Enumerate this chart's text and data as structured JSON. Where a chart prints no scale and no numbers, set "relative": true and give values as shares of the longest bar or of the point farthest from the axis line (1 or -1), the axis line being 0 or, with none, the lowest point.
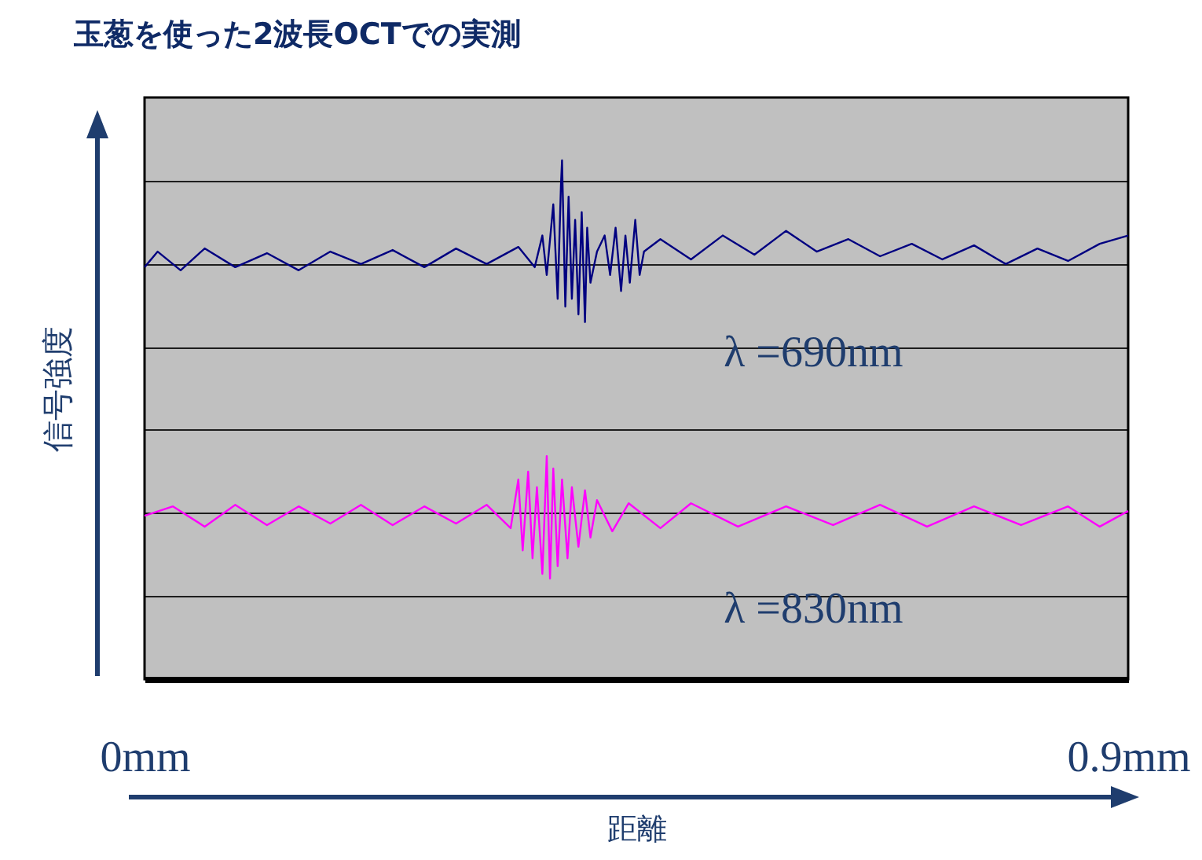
{
  "chart_data": {
    "type": "line",
    "title": "玉葱を使った2波長OCTでの実測",
    "xlabel": "距離",
    "ylabel": "信号強度",
    "relative": true,
    "grid": "y",
    "legend": false,
    "marker": "none",
    "line_style": "solid",
    "xlim": [
      0,
      0.9
    ],
    "xticks": [
      {
        "value": 0,
        "label": "0mm"
      },
      {
        "value": 0.9,
        "label": "0.9mm"
      }
    ],
    "series": [
      {
        "name": "λ =690nm",
        "color": "#000080",
        "x": [
          0,
          0.012,
          0.033,
          0.055,
          0.083,
          0.112,
          0.141,
          0.17,
          0.198,
          0.227,
          0.256,
          0.285,
          0.313,
          0.342,
          0.357,
          0.364,
          0.368,
          0.374,
          0.378,
          0.381,
          0.382,
          0.385,
          0.388,
          0.391,
          0.394,
          0.397,
          0.4,
          0.403,
          0.405,
          0.408,
          0.414,
          0.421,
          0.426,
          0.431,
          0.436,
          0.44,
          0.444,
          0.449,
          0.453,
          0.457,
          0.472,
          0.5,
          0.529,
          0.558,
          0.587,
          0.615,
          0.644,
          0.673,
          0.702,
          0.73,
          0.759,
          0.788,
          0.817,
          0.845,
          0.874,
          0.9
        ],
        "values": [
          0.794,
          0.824,
          0.788,
          0.83,
          0.794,
          0.821,
          0.788,
          0.824,
          0.8,
          0.827,
          0.794,
          0.83,
          0.8,
          0.833,
          0.794,
          0.855,
          0.779,
          0.915,
          0.733,
          0.952,
          1.0,
          0.718,
          0.93,
          0.733,
          0.885,
          0.703,
          0.9,
          0.688,
          0.87,
          0.764,
          0.824,
          0.855,
          0.779,
          0.87,
          0.748,
          0.855,
          0.764,
          0.885,
          0.779,
          0.824,
          0.848,
          0.809,
          0.855,
          0.818,
          0.864,
          0.824,
          0.848,
          0.815,
          0.839,
          0.809,
          0.836,
          0.8,
          0.83,
          0.806,
          0.839,
          0.855
        ]
      },
      {
        "name": "λ =830nm",
        "color": "#ff00ff",
        "x": [
          0,
          0.026,
          0.055,
          0.083,
          0.112,
          0.141,
          0.17,
          0.198,
          0.227,
          0.256,
          0.285,
          0.313,
          0.335,
          0.342,
          0.346,
          0.351,
          0.355,
          0.359,
          0.364,
          0.368,
          0.371,
          0.374,
          0.378,
          0.382,
          0.387,
          0.391,
          0.397,
          0.403,
          0.408,
          0.414,
          0.428,
          0.443,
          0.472,
          0.5,
          0.543,
          0.587,
          0.63,
          0.673,
          0.716,
          0.759,
          0.802,
          0.845,
          0.874,
          0.9
        ],
        "values": [
          0.315,
          0.333,
          0.294,
          0.336,
          0.297,
          0.333,
          0.3,
          0.336,
          0.297,
          0.333,
          0.3,
          0.336,
          0.291,
          0.385,
          0.248,
          0.4,
          0.233,
          0.37,
          0.203,
          0.43,
          0.194,
          0.406,
          0.218,
          0.385,
          0.233,
          0.37,
          0.255,
          0.364,
          0.273,
          0.345,
          0.285,
          0.339,
          0.291,
          0.339,
          0.294,
          0.333,
          0.297,
          0.336,
          0.294,
          0.333,
          0.297,
          0.333,
          0.294,
          0.324
        ]
      }
    ]
  }
}
